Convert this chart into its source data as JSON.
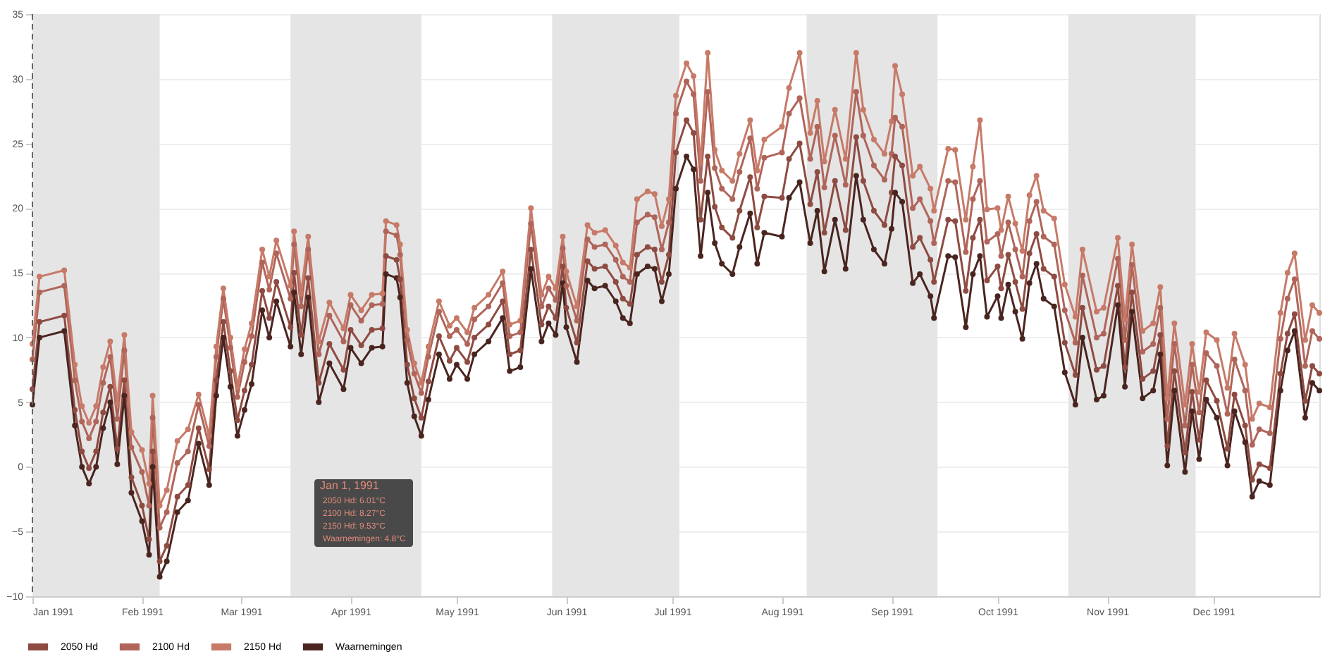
{
  "chart_data": {
    "type": "line",
    "x": [
      "1991-01-01",
      "1991-01-03",
      "1991-01-10",
      "1991-01-13",
      "1991-01-15",
      "1991-01-17",
      "1991-01-19",
      "1991-01-21",
      "1991-01-23",
      "1991-01-25",
      "1991-01-27",
      "1991-01-29",
      "1991-02-01",
      "1991-02-03",
      "1991-02-04",
      "1991-02-06",
      "1991-02-08",
      "1991-02-11",
      "1991-02-14",
      "1991-02-17",
      "1991-02-20",
      "1991-02-22",
      "1991-02-24",
      "1991-02-26",
      "1991-02-28",
      "1991-03-02",
      "1991-03-04",
      "1991-03-07",
      "1991-03-09",
      "1991-03-11",
      "1991-03-15",
      "1991-03-16",
      "1991-03-18",
      "1991-03-20",
      "1991-03-23",
      "1991-03-26",
      "1991-03-30",
      "1991-04-01",
      "1991-04-04",
      "1991-04-07",
      "1991-04-10",
      "1991-04-11",
      "1991-04-14",
      "1991-04-15",
      "1991-04-17",
      "1991-04-19",
      "1991-04-21",
      "1991-04-23",
      "1991-04-26",
      "1991-04-29",
      "1991-05-01",
      "1991-05-04",
      "1991-05-06",
      "1991-05-10",
      "1991-05-14",
      "1991-05-16",
      "1991-05-19",
      "1991-05-22",
      "1991-05-25",
      "1991-05-27",
      "1991-05-29",
      "1991-05-31",
      "1991-06-01",
      "1991-06-04",
      "1991-06-07",
      "1991-06-09",
      "1991-06-12",
      "1991-06-15",
      "1991-06-17",
      "1991-06-19",
      "1991-06-21",
      "1991-06-24",
      "1991-06-26",
      "1991-06-28",
      "1991-06-30",
      "1991-07-02",
      "1991-07-05",
      "1991-07-07",
      "1991-07-09",
      "1991-07-11",
      "1991-07-13",
      "1991-07-15",
      "1991-07-18",
      "1991-07-20",
      "1991-07-23",
      "1991-07-25",
      "1991-07-27",
      "1991-08-01",
      "1991-08-03",
      "1991-08-06",
      "1991-08-09",
      "1991-08-11",
      "1991-08-13",
      "1991-08-16",
      "1991-08-19",
      "1991-08-22",
      "1991-08-24",
      "1991-08-27",
      "1991-08-30",
      "1991-09-01",
      "1991-09-02",
      "1991-09-04",
      "1991-09-07",
      "1991-09-09",
      "1991-09-12",
      "1991-09-13",
      "1991-09-17",
      "1991-09-19",
      "1991-09-22",
      "1991-09-24",
      "1991-09-26",
      "1991-09-28",
      "1991-10-01",
      "1991-10-02",
      "1991-10-04",
      "1991-10-06",
      "1991-10-08",
      "1991-10-10",
      "1991-10-12",
      "1991-10-14",
      "1991-10-17",
      "1991-10-20",
      "1991-10-23",
      "1991-10-25",
      "1991-10-29",
      "1991-10-31",
      "1991-11-04",
      "1991-11-06",
      "1991-11-08",
      "1991-11-11",
      "1991-11-14",
      "1991-11-16",
      "1991-11-18",
      "1991-11-20",
      "1991-11-23",
      "1991-11-25",
      "1991-11-27",
      "1991-11-29",
      "1991-12-02",
      "1991-12-05",
      "1991-12-07",
      "1991-12-10",
      "1991-12-12",
      "1991-12-14",
      "1991-12-17",
      "1991-12-20",
      "1991-12-22",
      "1991-12-24",
      "1991-12-27",
      "1991-12-29",
      "1991-12-31"
    ],
    "series": [
      {
        "name": "2050 Hd",
        "color": "#8e4b41",
        "values": [
          6.0,
          11.2,
          11.7,
          4.4,
          1.2,
          -0.1,
          1.2,
          4.2,
          6.2,
          1.4,
          6.7,
          -0.8,
          -3,
          -5.6,
          1.2,
          -7.3,
          -6.1,
          -2.3,
          -1.4,
          3,
          -0.2,
          6.7,
          11.2,
          7.4,
          3.6,
          5.9,
          7.9,
          13.6,
          11.5,
          14.3,
          10.8,
          15,
          10.2,
          14.6,
          6.5,
          9.5,
          7.5,
          10.6,
          9.4,
          10.6,
          10.7,
          16.3,
          16,
          14.5,
          7.9,
          5.3,
          3.8,
          6.6,
          10.1,
          8.2,
          9.2,
          8.1,
          10,
          11,
          12.8,
          8.7,
          9,
          16.8,
          11,
          12.4,
          11.5,
          15.5,
          12.3,
          9.6,
          15.9,
          15.3,
          15.5,
          14.3,
          13,
          12.6,
          16.4,
          17,
          16.8,
          14.3,
          16.4,
          24.3,
          26.8,
          25.8,
          19.1,
          24,
          20.1,
          18.5,
          17.7,
          19.8,
          22.4,
          18.5,
          20.9,
          20.8,
          23.8,
          25,
          20.3,
          22.8,
          18.1,
          22.1,
          18.3,
          25.5,
          22.1,
          19.8,
          18.7,
          21.2,
          24,
          23.3,
          17,
          17.7,
          16,
          14.3,
          19.1,
          19,
          13.6,
          17.7,
          19.1,
          14.4,
          15.5,
          13.8,
          16.4,
          14.3,
          12.2,
          16.5,
          18,
          15.3,
          14.7,
          9.6,
          7.1,
          12.3,
          7.5,
          7.8,
          14,
          7.7,
          13.5,
          6.8,
          7.4,
          10.2,
          1.6,
          7.4,
          1.1,
          5.8,
          2.1,
          6.7,
          5.1,
          1.4,
          5.6,
          3.2,
          -1,
          0.2,
          -0.1,
          7.2,
          10.3,
          11.8,
          5.1,
          7.8,
          7.2
        ]
      },
      {
        "name": "2100 Hd",
        "color": "#b0655a",
        "values": [
          8.3,
          13.5,
          14,
          6.7,
          3.5,
          2.2,
          3.5,
          6.5,
          8.5,
          3.7,
          9,
          1.5,
          -0.4,
          -3,
          3.8,
          -4.7,
          -3.5,
          0.3,
          1.2,
          4.8,
          1.6,
          8.5,
          13,
          9.2,
          5.4,
          8.1,
          10.1,
          15.8,
          13.7,
          16.5,
          13,
          17.2,
          12.4,
          16.8,
          8.7,
          11.7,
          9.7,
          12.5,
          11.3,
          12.5,
          12.6,
          18.2,
          17.9,
          16.4,
          9.8,
          7.2,
          5.7,
          8.5,
          12,
          10.1,
          10.6,
          9.5,
          11.4,
          12.4,
          14.2,
          10.1,
          10.4,
          18.8,
          12.4,
          13.8,
          12.9,
          16.9,
          14,
          11.3,
          17.6,
          17,
          17.2,
          16,
          14.7,
          14.3,
          18.9,
          19.5,
          19.3,
          16.8,
          18.9,
          27.3,
          29.8,
          28.8,
          22.1,
          29,
          23.1,
          21.5,
          20.7,
          22.8,
          25.4,
          21.5,
          23.9,
          24.3,
          27.3,
          28.5,
          23.8,
          26.3,
          21.6,
          25.6,
          21.8,
          29,
          25.6,
          23.3,
          22.2,
          24.2,
          27,
          26.3,
          20,
          20.7,
          19,
          17.3,
          22.1,
          22,
          16.6,
          20.7,
          22.1,
          17.4,
          18,
          16.3,
          18.9,
          16.8,
          14.7,
          19,
          20.5,
          17.8,
          17.2,
          12.1,
          9.6,
          14.8,
          10,
          10.3,
          16.1,
          9.8,
          15.6,
          8.9,
          9.5,
          12.3,
          3.7,
          9.5,
          3.2,
          7.9,
          4.2,
          8.8,
          7.8,
          4.1,
          8.3,
          5.9,
          1.7,
          2.9,
          2.6,
          9.9,
          13,
          14.5,
          7.8,
          10.5,
          9.9
        ]
      },
      {
        "name": "2150 Hd",
        "color": "#c77a68",
        "values": [
          9.5,
          14.7,
          15.2,
          7.9,
          4.7,
          3.4,
          4.7,
          7.7,
          9.7,
          4.9,
          10.2,
          2.7,
          1.3,
          -1.3,
          5.5,
          -3,
          -1.8,
          2,
          2.9,
          5.6,
          2.4,
          9.3,
          13.8,
          10,
          6.2,
          9.1,
          11.1,
          16.8,
          14.7,
          17.5,
          14,
          18.2,
          13.4,
          17.8,
          9.7,
          12.7,
          10.7,
          13.3,
          12.1,
          13.3,
          13.4,
          19,
          18.7,
          17.2,
          10.6,
          8,
          6.5,
          9.3,
          12.8,
          10.9,
          11.5,
          10.4,
          12.3,
          13.3,
          15.1,
          11,
          11.3,
          20,
          13.3,
          14.7,
          13.8,
          17.8,
          15.1,
          12.4,
          18.7,
          18.1,
          18.3,
          17.1,
          15.8,
          15.4,
          20.7,
          21.3,
          21.1,
          18.6,
          20.7,
          28.7,
          31.2,
          30.2,
          23.5,
          32,
          24.5,
          22.9,
          22.1,
          24.2,
          26.8,
          22.9,
          25.3,
          26.3,
          29.3,
          32,
          25.8,
          28.3,
          23.6,
          27.6,
          23.8,
          32,
          27.6,
          25.3,
          24.2,
          26.7,
          31,
          28.8,
          22.5,
          23.2,
          21.5,
          19.8,
          24.6,
          24.5,
          19.1,
          23.2,
          26.8,
          19.9,
          20,
          18.3,
          20.9,
          18.8,
          16.7,
          21,
          22.5,
          19.8,
          19.2,
          14.1,
          11.6,
          16.8,
          12,
          12.3,
          17.7,
          11.4,
          17.2,
          10.5,
          11.1,
          13.9,
          5.3,
          11.1,
          4.8,
          9.5,
          5.8,
          10.4,
          9.8,
          6.1,
          10.3,
          7.9,
          3.7,
          4.9,
          4.6,
          11.9,
          15,
          16.5,
          9.8,
          12.5,
          11.9
        ]
      },
      {
        "name": "Waarnemingen",
        "color": "#4a2520",
        "values": [
          4.8,
          10,
          10.5,
          3.2,
          0,
          -1.3,
          0,
          3,
          5,
          0.2,
          5.5,
          -2,
          -4.2,
          -6.8,
          0,
          -8.5,
          -7.3,
          -3.5,
          -2.6,
          1.8,
          -1.4,
          5.5,
          10,
          6.2,
          2.4,
          4.4,
          6.4,
          12.1,
          10,
          12.8,
          9.3,
          13.5,
          8.7,
          13.1,
          5,
          8,
          6,
          9.2,
          8,
          9.2,
          9.3,
          14.9,
          14.6,
          13.1,
          6.5,
          3.9,
          2.4,
          5.2,
          8.7,
          6.8,
          7.9,
          6.8,
          8.7,
          9.7,
          11.5,
          7.4,
          7.7,
          15.3,
          9.7,
          11.1,
          10.2,
          14.2,
          10.8,
          8.1,
          14.4,
          13.8,
          14,
          12.8,
          11.5,
          11.1,
          14.9,
          15.5,
          15.3,
          12.8,
          14.9,
          21.5,
          24,
          23,
          16.3,
          21.2,
          17.3,
          15.7,
          14.9,
          17,
          19.6,
          15.7,
          18.1,
          17.8,
          20.8,
          22,
          17.3,
          19.8,
          15.1,
          19.1,
          15.3,
          22.5,
          19.1,
          16.8,
          15.7,
          18.4,
          21.2,
          20.5,
          14.2,
          14.9,
          13.2,
          11.5,
          16.3,
          16.2,
          10.8,
          14.9,
          16.3,
          11.6,
          13.2,
          11.5,
          14.1,
          12,
          9.9,
          14.2,
          15.7,
          13,
          12.4,
          7.3,
          4.8,
          10,
          5.2,
          5.5,
          12.5,
          6.2,
          12,
          5.3,
          5.9,
          8.7,
          0.1,
          5.9,
          -0.4,
          4.3,
          0.6,
          5.2,
          3.8,
          0.1,
          4.3,
          1.9,
          -2.3,
          -1.1,
          -1.4,
          5.9,
          9,
          10.5,
          3.8,
          6.5,
          5.9
        ]
      }
    ],
    "xlim": [
      "1991-01-01",
      "1991-12-31"
    ],
    "xticks": [
      {
        "value": "1991-01-01",
        "label": "Jan 1991"
      },
      {
        "value": "1991-02-01",
        "label": "Feb 1991"
      },
      {
        "value": "1991-03-01",
        "label": "Mar 1991"
      },
      {
        "value": "1991-04-01",
        "label": "Apr 1991"
      },
      {
        "value": "1991-05-01",
        "label": "May 1991"
      },
      {
        "value": "1991-06-01",
        "label": "Jun 1991"
      },
      {
        "value": "1991-07-01",
        "label": "Jul 1991"
      },
      {
        "value": "1991-08-01",
        "label": "Aug 1991"
      },
      {
        "value": "1991-09-01",
        "label": "Sep 1991"
      },
      {
        "value": "1991-10-01",
        "label": "Oct 1991"
      },
      {
        "value": "1991-11-01",
        "label": "Nov 1991"
      },
      {
        "value": "1991-12-01",
        "label": "Dec 1991"
      }
    ],
    "ylim": [
      -10,
      35
    ],
    "yticks": [
      -10,
      -5,
      0,
      5,
      10,
      15,
      20,
      25,
      30,
      35
    ],
    "bands": [
      {
        "axis": "x",
        "from": "1991-01-01",
        "to": "1991-02-06",
        "color": "#e5e5e5"
      },
      {
        "axis": "x",
        "from": "1991-03-15",
        "to": "1991-04-21",
        "color": "#e5e5e5"
      },
      {
        "axis": "x",
        "from": "1991-05-28",
        "to": "1991-07-03",
        "color": "#e5e5e5"
      },
      {
        "axis": "x",
        "from": "1991-08-08",
        "to": "1991-09-14",
        "color": "#e5e5e5"
      },
      {
        "axis": "x",
        "from": "1991-10-21",
        "to": "1991-11-26",
        "color": "#e5e5e5"
      }
    ],
    "ref_lines": [
      {
        "axis": "x",
        "value": "1991-01-01",
        "color": "#666666",
        "line_style": "dashed"
      }
    ],
    "annotations": [
      "Jan 1, 1991",
      "2050 Hd: 6.01°C",
      "2100 Hd: 8.27°C",
      "2150 Hd: 9.53°C",
      "Waarnemingen: 4.8°C"
    ],
    "grid": "y",
    "legend": "bottom",
    "marker": "circle",
    "line_style": "solid"
  }
}
